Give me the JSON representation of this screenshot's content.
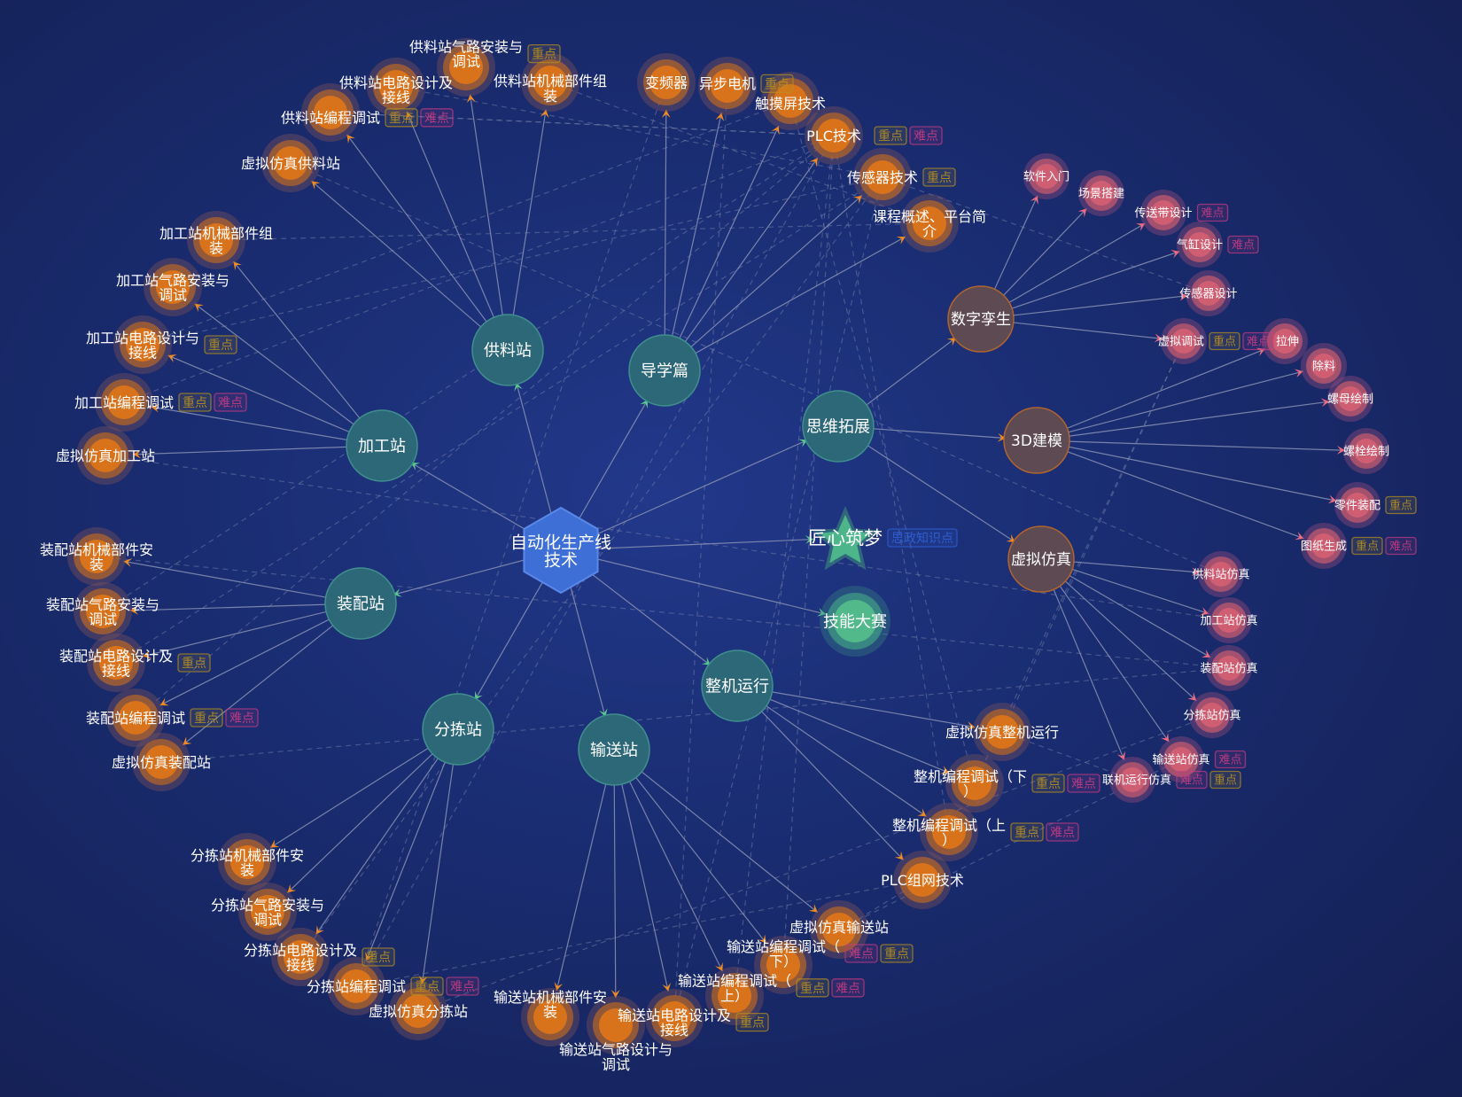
{
  "colors": {
    "center": "#3e6fd6",
    "station": "#2d6878",
    "module": "#5e4a52",
    "leaf_orange": "#d8731c",
    "leaf_pink": "#cf5e72",
    "star": "#4db58a",
    "contest": "#52b98a",
    "tag_key": "#b8901e",
    "tag_hard": "#c83c82",
    "tag_ideology": "#2f62d8",
    "edge": "#8a93b5",
    "arrow_green": "#57c98a"
  },
  "tags": {
    "key": "重点",
    "hard": "难点",
    "ideology": "思政知识点"
  },
  "nodes": [
    {
      "id": "center",
      "label": "自动化生产线技术",
      "kind": "center"
    },
    {
      "id": "gl",
      "label": "供料站",
      "kind": "station"
    },
    {
      "id": "dx",
      "label": "导学篇",
      "kind": "station"
    },
    {
      "id": "jg",
      "label": "加工站",
      "kind": "station"
    },
    {
      "id": "sw",
      "label": "思维拓展",
      "kind": "station"
    },
    {
      "id": "jx",
      "label": "匠心筑梦",
      "kind": "star",
      "tags": [
        "ideology"
      ]
    },
    {
      "id": "jn",
      "label": "技能大赛",
      "kind": "contest"
    },
    {
      "id": "sz",
      "label": "数字孪生",
      "kind": "module"
    },
    {
      "id": "3d",
      "label": "3D建模",
      "kind": "module"
    },
    {
      "id": "xf",
      "label": "虚拟仿真",
      "kind": "module"
    },
    {
      "id": "zp",
      "label": "装配站",
      "kind": "station"
    },
    {
      "id": "zj",
      "label": "整机运行",
      "kind": "station"
    },
    {
      "id": "fj",
      "label": "分拣站",
      "kind": "station"
    },
    {
      "id": "ss",
      "label": "输送站",
      "kind": "station"
    },
    {
      "id": "gl1",
      "label": "虚拟仿真供料站",
      "kind": "orange"
    },
    {
      "id": "gl2",
      "label": "供料站编程调试",
      "kind": "orange",
      "tags": [
        "key",
        "hard"
      ]
    },
    {
      "id": "gl3",
      "label": "供料站电路设计及接线",
      "kind": "orange"
    },
    {
      "id": "gl4",
      "label": "供料站气路安装与调试",
      "kind": "orange",
      "tags": [
        "key"
      ]
    },
    {
      "id": "gl5",
      "label": "供料站机械部件组装",
      "kind": "orange"
    },
    {
      "id": "dx1",
      "label": "变频器",
      "kind": "orange"
    },
    {
      "id": "dx2",
      "label": "异步电机",
      "kind": "orange",
      "tags": [
        "key"
      ]
    },
    {
      "id": "dx3",
      "label": "触摸屏技术",
      "kind": "orange"
    },
    {
      "id": "dx4",
      "label": "PLC技术",
      "kind": "orange",
      "tags": [
        "key",
        "hard"
      ]
    },
    {
      "id": "dx5",
      "label": "传感器技术",
      "kind": "orange",
      "tags": [
        "key"
      ]
    },
    {
      "id": "dx6",
      "label": "课程概述、平台简介",
      "kind": "orange"
    },
    {
      "id": "jg1",
      "label": "加工站机械部件组装",
      "kind": "orange"
    },
    {
      "id": "jg2",
      "label": "加工站气路安装与调试",
      "kind": "orange"
    },
    {
      "id": "jg3",
      "label": "加工站电路设计与接线",
      "kind": "orange",
      "tags": [
        "key"
      ]
    },
    {
      "id": "jg4",
      "label": "加工站编程调试",
      "kind": "orange",
      "tags": [
        "key",
        "hard"
      ]
    },
    {
      "id": "jg5",
      "label": "虚拟仿真加工站",
      "kind": "orange"
    },
    {
      "id": "zp1",
      "label": "装配站机械部件安装",
      "kind": "orange"
    },
    {
      "id": "zp2",
      "label": "装配站气路安装与调试",
      "kind": "orange"
    },
    {
      "id": "zp3",
      "label": "装配站电路设计及接线",
      "kind": "orange",
      "tags": [
        "key"
      ]
    },
    {
      "id": "zp4",
      "label": "装配站编程调试",
      "kind": "orange",
      "tags": [
        "key",
        "hard"
      ]
    },
    {
      "id": "zp5",
      "label": "虚拟仿真装配站",
      "kind": "orange"
    },
    {
      "id": "fj1",
      "label": "分拣站机械部件安装",
      "kind": "orange"
    },
    {
      "id": "fj2",
      "label": "分拣站气路安装与调试",
      "kind": "orange"
    },
    {
      "id": "fj3",
      "label": "分拣站电路设计及接线",
      "kind": "orange",
      "tags": [
        "key"
      ]
    },
    {
      "id": "fj4",
      "label": "分拣站编程调试",
      "kind": "orange",
      "tags": [
        "key",
        "hard"
      ]
    },
    {
      "id": "fj5",
      "label": "虚拟仿真分拣站",
      "kind": "orange"
    },
    {
      "id": "ss1",
      "label": "输送站机械部件安装",
      "kind": "orange"
    },
    {
      "id": "ss2",
      "label": "输送站气路设计与调试",
      "kind": "orange"
    },
    {
      "id": "ss3",
      "label": "输送站电路设计及接线",
      "kind": "orange",
      "tags": [
        "key"
      ]
    },
    {
      "id": "ss4",
      "label": "输送站编程调试（上）",
      "kind": "orange",
      "tags": [
        "key",
        "hard"
      ]
    },
    {
      "id": "ss5",
      "label": "输送站编程调试（下）",
      "kind": "orange",
      "tags": [
        "hard",
        "key"
      ]
    },
    {
      "id": "ss6",
      "label": "虚拟仿真输送站",
      "kind": "orange"
    },
    {
      "id": "zj1",
      "label": "PLC组网技术",
      "kind": "orange"
    },
    {
      "id": "zj2",
      "label": "整机编程调试（上）",
      "kind": "orange",
      "tags": [
        "key",
        "hard"
      ]
    },
    {
      "id": "zj3",
      "label": "整机编程调试（下）",
      "kind": "orange",
      "tags": [
        "key",
        "hard"
      ]
    },
    {
      "id": "zj4",
      "label": "虚拟仿真整机运行",
      "kind": "orange"
    },
    {
      "id": "sz1",
      "label": "软件入门",
      "kind": "pink"
    },
    {
      "id": "sz2",
      "label": "场景搭建",
      "kind": "pink"
    },
    {
      "id": "sz3",
      "label": "传送带设计",
      "kind": "pink",
      "tags": [
        "hard"
      ]
    },
    {
      "id": "sz4",
      "label": "气缸设计",
      "kind": "pink",
      "tags": [
        "hard"
      ]
    },
    {
      "id": "sz5",
      "label": "传感器设计",
      "kind": "pink"
    },
    {
      "id": "sz6",
      "label": "虚拟调试",
      "kind": "pink",
      "tags": [
        "key",
        "hard"
      ]
    },
    {
      "id": "3d1",
      "label": "拉伸",
      "kind": "pink"
    },
    {
      "id": "3d2",
      "label": "除料",
      "kind": "pink"
    },
    {
      "id": "3d3",
      "label": "螺母绘制",
      "kind": "pink"
    },
    {
      "id": "3d4",
      "label": "螺栓绘制",
      "kind": "pink"
    },
    {
      "id": "3d5",
      "label": "零件装配",
      "kind": "pink",
      "tags": [
        "key"
      ]
    },
    {
      "id": "3d6",
      "label": "图纸生成",
      "kind": "pink",
      "tags": [
        "key",
        "hard"
      ]
    },
    {
      "id": "xf1",
      "label": "供料站仿真",
      "kind": "pink"
    },
    {
      "id": "xf2",
      "label": "加工站仿真",
      "kind": "pink"
    },
    {
      "id": "xf3",
      "label": "装配站仿真",
      "kind": "pink"
    },
    {
      "id": "xf4",
      "label": "分拣站仿真",
      "kind": "pink"
    },
    {
      "id": "xf5",
      "label": "输送站仿真",
      "kind": "pink",
      "tags": [
        "hard"
      ]
    },
    {
      "id": "xf6",
      "label": "联机运行仿真",
      "kind": "pink",
      "tags": [
        "hard",
        "key"
      ]
    }
  ],
  "links": [
    [
      "center",
      "gl"
    ],
    [
      "center",
      "dx"
    ],
    [
      "center",
      "jg"
    ],
    [
      "center",
      "sw"
    ],
    [
      "center",
      "jx"
    ],
    [
      "center",
      "jn"
    ],
    [
      "center",
      "zp"
    ],
    [
      "center",
      "zj"
    ],
    [
      "center",
      "fj"
    ],
    [
      "center",
      "ss"
    ],
    [
      "sw",
      "sz"
    ],
    [
      "sw",
      "3d"
    ],
    [
      "sw",
      "xf"
    ],
    [
      "gl",
      "gl1"
    ],
    [
      "gl",
      "gl2"
    ],
    [
      "gl",
      "gl3"
    ],
    [
      "gl",
      "gl4"
    ],
    [
      "gl",
      "gl5"
    ],
    [
      "dx",
      "dx1"
    ],
    [
      "dx",
      "dx2"
    ],
    [
      "dx",
      "dx3"
    ],
    [
      "dx",
      "dx4"
    ],
    [
      "dx",
      "dx5"
    ],
    [
      "dx",
      "dx6"
    ],
    [
      "jg",
      "jg1"
    ],
    [
      "jg",
      "jg2"
    ],
    [
      "jg",
      "jg3"
    ],
    [
      "jg",
      "jg4"
    ],
    [
      "jg",
      "jg5"
    ],
    [
      "zp",
      "zp1"
    ],
    [
      "zp",
      "zp2"
    ],
    [
      "zp",
      "zp3"
    ],
    [
      "zp",
      "zp4"
    ],
    [
      "zp",
      "zp5"
    ],
    [
      "fj",
      "fj1"
    ],
    [
      "fj",
      "fj2"
    ],
    [
      "fj",
      "fj3"
    ],
    [
      "fj",
      "fj4"
    ],
    [
      "fj",
      "fj5"
    ],
    [
      "ss",
      "ss1"
    ],
    [
      "ss",
      "ss2"
    ],
    [
      "ss",
      "ss3"
    ],
    [
      "ss",
      "ss4"
    ],
    [
      "ss",
      "ss5"
    ],
    [
      "ss",
      "ss6"
    ],
    [
      "zj",
      "zj1"
    ],
    [
      "zj",
      "zj2"
    ],
    [
      "zj",
      "zj3"
    ],
    [
      "zj",
      "zj4"
    ],
    [
      "sz",
      "sz1"
    ],
    [
      "sz",
      "sz2"
    ],
    [
      "sz",
      "sz3"
    ],
    [
      "sz",
      "sz4"
    ],
    [
      "sz",
      "sz5"
    ],
    [
      "sz",
      "sz6"
    ],
    [
      "3d",
      "3d1"
    ],
    [
      "3d",
      "3d2"
    ],
    [
      "3d",
      "3d3"
    ],
    [
      "3d",
      "3d4"
    ],
    [
      "3d",
      "3d5"
    ],
    [
      "3d",
      "3d6"
    ],
    [
      "xf",
      "xf1"
    ],
    [
      "xf",
      "xf2"
    ],
    [
      "xf",
      "xf3"
    ],
    [
      "xf",
      "xf4"
    ],
    [
      "xf",
      "xf5"
    ],
    [
      "xf",
      "xf6"
    ]
  ],
  "prerequisite_links": [
    [
      "dx4",
      "gl2"
    ],
    [
      "dx4",
      "jg4"
    ],
    [
      "dx4",
      "zp4"
    ],
    [
      "dx4",
      "fj4"
    ],
    [
      "dx4",
      "ss4"
    ],
    [
      "dx4",
      "ss5"
    ],
    [
      "dx4",
      "zj2"
    ],
    [
      "dx5",
      "jg3"
    ],
    [
      "dx5",
      "zp3"
    ],
    [
      "dx5",
      "fj3"
    ],
    [
      "dx5",
      "ss3"
    ],
    [
      "dx5",
      "sz5"
    ],
    [
      "dx1",
      "fj4"
    ],
    [
      "dx2",
      "ss3"
    ],
    [
      "dx3",
      "zj3"
    ],
    [
      "dx6",
      "gl5"
    ],
    [
      "dx6",
      "jg1"
    ],
    [
      "gl2",
      "dx4"
    ],
    [
      "gl3",
      "dx5"
    ],
    [
      "jg3",
      "dx3"
    ],
    [
      "zp1",
      "xf3"
    ],
    [
      "zp5",
      "xf3"
    ],
    [
      "fj5",
      "xf4"
    ],
    [
      "ss6",
      "xf5"
    ],
    [
      "zj4",
      "xf6"
    ],
    [
      "sz6",
      "zj4"
    ],
    [
      "sz6",
      "zj3"
    ],
    [
      "jg5",
      "xf2"
    ],
    [
      "gl1",
      "xf1"
    ],
    [
      "fj4",
      "zj1"
    ],
    [
      "ss5",
      "zj1"
    ],
    [
      "zp2",
      "dx4"
    ]
  ]
}
